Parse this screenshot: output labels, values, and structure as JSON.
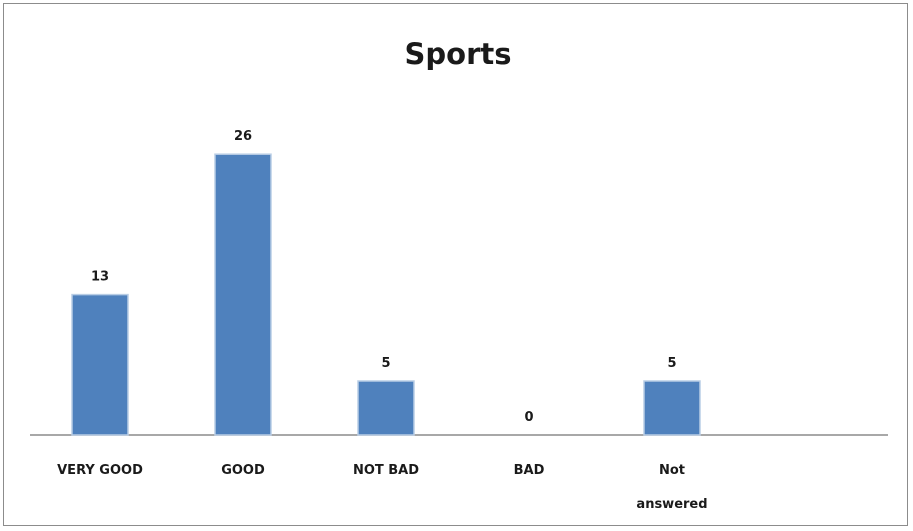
{
  "chart_data": {
    "type": "bar",
    "title": "Sports",
    "categories": [
      "VERY GOOD",
      "GOOD",
      "NOT BAD",
      "BAD",
      "Not answered"
    ],
    "values": [
      13,
      26,
      5,
      0,
      5
    ],
    "data_labels": [
      "13",
      "26",
      "5",
      "0",
      "5"
    ],
    "xlabel": "",
    "ylabel": "",
    "ylim": [
      0,
      30
    ],
    "grid": false,
    "legend": "none",
    "bar_color": "#4f81bd",
    "bar_edge_color": "#b9cde5",
    "axis_color": "#8c8c8c"
  }
}
